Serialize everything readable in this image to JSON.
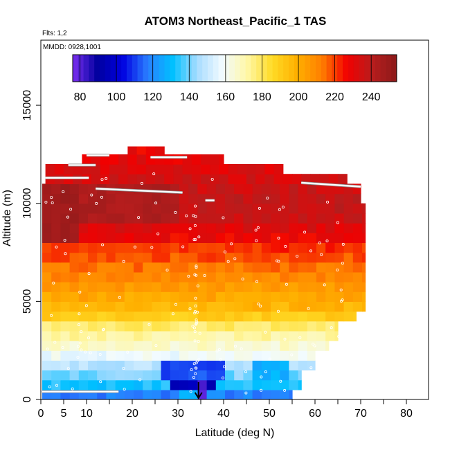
{
  "chart_data": {
    "type": "heatmap",
    "title": "ATOM3 Northeast_Pacific_1 TAS",
    "subtitle_flights": "Flts: 1,2",
    "subtitle_dates": "MMDD: 0928,1001",
    "xlabel": "Latitude (deg N)",
    "ylabel": "Altitude (m)",
    "xlim": [
      0,
      85
    ],
    "ylim": [
      0,
      18000
    ],
    "xticks": [
      0,
      5,
      10,
      20,
      30,
      40,
      50,
      60,
      70,
      80
    ],
    "xtick_labels": [
      "0",
      "5",
      "10",
      "20",
      "30",
      "40",
      "50",
      "60",
      "70",
      "80"
    ],
    "yticks": [
      0,
      5000,
      10000,
      15000
    ],
    "ytick_labels": [
      "0",
      "5000",
      "10000",
      "15000"
    ],
    "colorbar": {
      "range": [
        76,
        254
      ],
      "ticks": [
        80,
        100,
        120,
        140,
        160,
        180,
        200,
        220,
        240
      ],
      "tick_labels": [
        "80",
        "100",
        "120",
        "140",
        "160",
        "180",
        "200",
        "220",
        "240"
      ],
      "colors": [
        "#7b2ff0",
        "#00009e",
        "#0000e0",
        "#2a7dff",
        "#00c0ff",
        "#a8dcff",
        "#f2fbff",
        "#fff7a6",
        "#ffdb26",
        "#ffb000",
        "#ff7e00",
        "#f20000",
        "#b81d1d",
        "#8b1a1a"
      ]
    },
    "arrow_marker": {
      "latitude": 34.5,
      "altitude": 0
    },
    "altitude_bands": [
      {
        "alt": [
          0,
          500
        ],
        "lat": [
          0.3,
          55
        ],
        "tas": 118
      },
      {
        "alt": [
          500,
          1000
        ],
        "lat": [
          0.3,
          57
        ],
        "tas": 132
      },
      {
        "alt": [
          1000,
          1500
        ],
        "lat": [
          0.3,
          57
        ],
        "tas": 140
      },
      {
        "alt": [
          1500,
          2000
        ],
        "lat": [
          0.3,
          60
        ],
        "tas": 148
      },
      {
        "alt": [
          2000,
          2500
        ],
        "lat": [
          0.3,
          60
        ],
        "tas": 158
      },
      {
        "alt": [
          2500,
          3000
        ],
        "lat": [
          0.3,
          63
        ],
        "tas": 166
      },
      {
        "alt": [
          3000,
          3500
        ],
        "lat": [
          0.3,
          65
        ],
        "tas": 172
      },
      {
        "alt": [
          3500,
          4000
        ],
        "lat": [
          0.3,
          65
        ],
        "tas": 178
      },
      {
        "alt": [
          4000,
          4500
        ],
        "lat": [
          0.3,
          69
        ],
        "tas": 190
      },
      {
        "alt": [
          4500,
          5000
        ],
        "lat": [
          0.3,
          71
        ],
        "tas": 198
      },
      {
        "alt": [
          5000,
          5500
        ],
        "lat": [
          0.3,
          71
        ],
        "tas": 202
      },
      {
        "alt": [
          5500,
          6000
        ],
        "lat": [
          0.3,
          71
        ],
        "tas": 206
      },
      {
        "alt": [
          6000,
          6500
        ],
        "lat": [
          0.3,
          71
        ],
        "tas": 210
      },
      {
        "alt": [
          6500,
          7000
        ],
        "lat": [
          0.3,
          71
        ],
        "tas": 214
      },
      {
        "alt": [
          7000,
          7500
        ],
        "lat": [
          0.3,
          71
        ],
        "tas": 218
      },
      {
        "alt": [
          7500,
          8000
        ],
        "lat": [
          0.3,
          71
        ],
        "tas": 222
      },
      {
        "alt": [
          8000,
          8500
        ],
        "lat": [
          0.3,
          71
        ],
        "tas": 228
      },
      {
        "alt": [
          8500,
          9000
        ],
        "lat": [
          0.3,
          71
        ],
        "tas": 232
      },
      {
        "alt": [
          9000,
          9500
        ],
        "lat": [
          0.3,
          71
        ],
        "tas": 236
      },
      {
        "alt": [
          9500,
          10000
        ],
        "lat": [
          0.3,
          71
        ],
        "tas": 238
      },
      {
        "alt": [
          10000,
          10500
        ],
        "lat": [
          0.3,
          70
        ],
        "tas": 238
      },
      {
        "alt": [
          10500,
          11000
        ],
        "lat": [
          0.3,
          70
        ],
        "tas": 236
      },
      {
        "alt": [
          11000,
          11500
        ],
        "lat": [
          1,
          67
        ],
        "tas": 234
      },
      {
        "alt": [
          11500,
          12000
        ],
        "lat": [
          1,
          53
        ],
        "tas": 232
      },
      {
        "alt": [
          12000,
          12500
        ],
        "lat": [
          9,
          40
        ],
        "tas": 230
      },
      {
        "alt": [
          12500,
          12900
        ],
        "lat": [
          19,
          27
        ],
        "tas": 228
      }
    ],
    "anomalies": [
      {
        "alt": [
          0,
          500
        ],
        "lat": [
          30,
          37
        ],
        "tas": 128
      },
      {
        "alt": [
          300,
          1200
        ],
        "lat": [
          29,
          38
        ],
        "tas": 96
      },
      {
        "alt": [
          0,
          1000
        ],
        "lat": [
          33.5,
          35.5
        ],
        "tas": 82
      },
      {
        "alt": [
          1000,
          2200
        ],
        "lat": [
          27,
          40
        ],
        "tas": 112
      },
      {
        "alt": [
          1000,
          2000
        ],
        "lat": [
          47,
          54
        ],
        "tas": 128
      },
      {
        "alt": [
          8000,
          11000
        ],
        "lat": [
          0.3,
          8
        ],
        "tas": 248
      },
      {
        "alt": [
          9000,
          11000
        ],
        "lat": [
          8,
          30
        ],
        "tas": 244
      }
    ],
    "flight_tracks": [
      {
        "lat": [
          1,
          10.5
        ],
        "alt": [
          11300,
          11300
        ]
      },
      {
        "lat": [
          6,
          12
        ],
        "alt": [
          11950,
          11950
        ]
      },
      {
        "lat": [
          10,
          15
        ],
        "alt": [
          12450,
          12450
        ]
      },
      {
        "lat": [
          12,
          31
        ],
        "alt": [
          10750,
          10550
        ]
      },
      {
        "lat": [
          24,
          32
        ],
        "alt": [
          12350,
          12350
        ]
      },
      {
        "lat": [
          36,
          38
        ],
        "alt": [
          10150,
          10150
        ]
      },
      {
        "lat": [
          57,
          70
        ],
        "alt": [
          11050,
          10850
        ]
      },
      {
        "lat": [
          0.3,
          17
        ],
        "alt": [
          400,
          400
        ]
      }
    ]
  }
}
